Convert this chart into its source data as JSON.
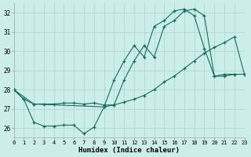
{
  "xlabel": "Humidex (Indice chaleur)",
  "bg_color": "#cceee8",
  "grid_color": "#aad4cc",
  "line_color": "#1a6b5e",
  "xlim": [
    0,
    23
  ],
  "ylim": [
    25.5,
    32.5
  ],
  "xtick_labels": [
    "0",
    "1",
    "2",
    "3",
    "4",
    "5",
    "6",
    "7",
    "8",
    "9",
    "10",
    "11",
    "12",
    "13",
    "14",
    "15",
    "16",
    "17",
    "18",
    "19",
    "20",
    "21",
    "22",
    "23"
  ],
  "xticks": [
    0,
    1,
    2,
    3,
    4,
    5,
    6,
    7,
    8,
    9,
    10,
    11,
    12,
    13,
    14,
    15,
    16,
    17,
    18,
    19,
    20,
    21,
    22,
    23
  ],
  "yticks": [
    26,
    27,
    28,
    29,
    30,
    31,
    32
  ],
  "s1_x": [
    0,
    1,
    2,
    3,
    4,
    5,
    6,
    7,
    8,
    9,
    10,
    11,
    12,
    13,
    14,
    15,
    16,
    17,
    18,
    19,
    20,
    21,
    22
  ],
  "s1_y": [
    28.0,
    27.5,
    26.3,
    26.1,
    26.1,
    26.15,
    26.15,
    25.7,
    26.05,
    27.1,
    28.5,
    29.5,
    30.3,
    29.7,
    31.3,
    31.6,
    32.1,
    32.2,
    31.85,
    30.15,
    28.7,
    28.8,
    28.8
  ],
  "s2_x": [
    0,
    1,
    2,
    3,
    4,
    5,
    6,
    7,
    8,
    9,
    10,
    11,
    12,
    13,
    14,
    15,
    16,
    17,
    18,
    19,
    20,
    21,
    22,
    23
  ],
  "s2_y": [
    28.0,
    27.5,
    27.25,
    27.25,
    27.25,
    27.3,
    27.3,
    27.25,
    27.3,
    27.2,
    27.2,
    27.35,
    27.5,
    27.7,
    28.0,
    28.4,
    28.7,
    29.1,
    29.5,
    29.9,
    30.2,
    30.45,
    30.75,
    28.8
  ],
  "s3_x": [
    0,
    2,
    9,
    10,
    11,
    12,
    13,
    14,
    15,
    16,
    17,
    18,
    19,
    20,
    21,
    22,
    23
  ],
  "s3_y": [
    28.0,
    27.25,
    27.1,
    27.2,
    28.5,
    29.5,
    30.3,
    29.7,
    31.3,
    31.6,
    32.1,
    32.2,
    31.85,
    28.7,
    28.7,
    28.8,
    28.8
  ]
}
